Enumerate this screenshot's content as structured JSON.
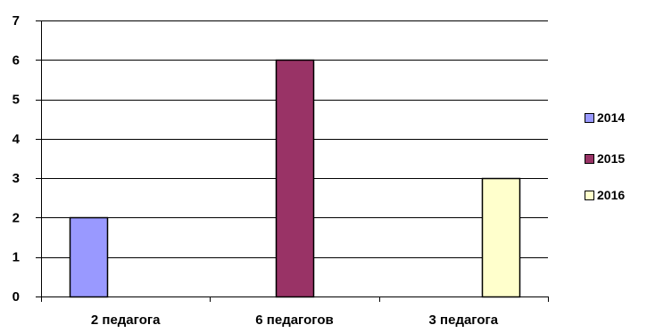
{
  "chart_data": {
    "type": "bar",
    "categories": [
      "2 педагога",
      "6 педагогов",
      "3 педагога"
    ],
    "series": [
      {
        "name": "2014",
        "values": [
          2,
          null,
          null
        ],
        "color": "#9999ff"
      },
      {
        "name": "2015",
        "values": [
          null,
          6,
          null
        ],
        "color": "#993366"
      },
      {
        "name": "2016",
        "values": [
          null,
          null,
          3
        ],
        "color": "#ffffcc"
      }
    ],
    "ylim": [
      0,
      7
    ],
    "yticks": [
      "0",
      "1",
      "2",
      "3",
      "4",
      "5",
      "6",
      "7"
    ],
    "grid": true,
    "legend_position": "right"
  }
}
